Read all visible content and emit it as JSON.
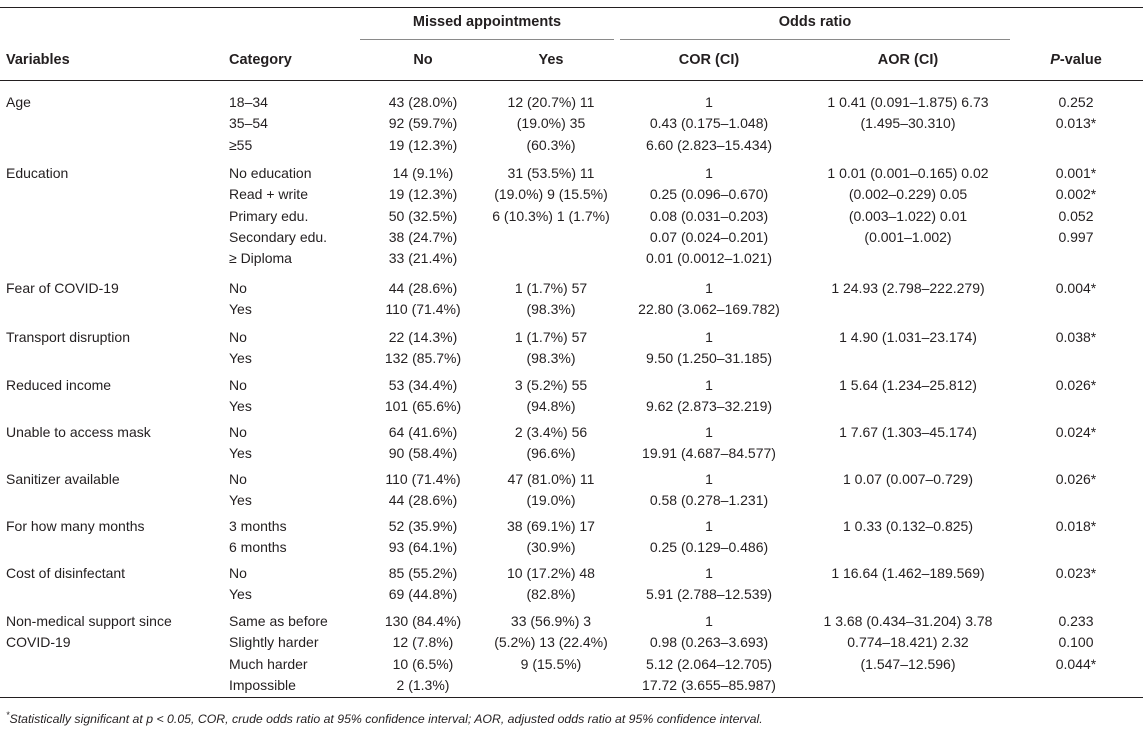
{
  "header": {
    "group_missed": "Missed appointments",
    "group_odds": "Odds ratio",
    "variables": "Variables",
    "category": "Category",
    "no": "No",
    "yes": "Yes",
    "cor": "COR (CI)",
    "aor": "AOR (CI)",
    "p_italic": "P",
    "p_rest": "-value"
  },
  "groups": [
    {
      "variable": [
        "Age"
      ],
      "categories": [
        "18–34",
        "35–54",
        "≥55"
      ],
      "no": [
        "43 (28.0%)",
        "92 (59.7%)",
        "19 (12.3%)"
      ],
      "yes": [
        "12 (20.7%) 11",
        "(19.0%) 35",
        "(60.3%)"
      ],
      "cor": [
        "1",
        "0.43 (0.175–1.048)",
        "6.60 (2.823–15.434)"
      ],
      "aor": [
        "1 0.41 (0.091–1.875) 6.73",
        "(1.495–30.310)"
      ],
      "p": [
        "0.252",
        "0.013*"
      ]
    },
    {
      "variable": [
        "Education"
      ],
      "categories": [
        "No education",
        "Read + write",
        "Primary edu.",
        "Secondary edu.",
        "≥ Diploma"
      ],
      "no": [
        "14 (9.1%)",
        "19 (12.3%)",
        "50 (32.5%)",
        "38 (24.7%)",
        "33 (21.4%)"
      ],
      "yes": [
        "31 (53.5%) 11",
        "(19.0%) 9 (15.5%)",
        "6 (10.3%) 1 (1.7%)"
      ],
      "cor": [
        "1",
        "0.25 (0.096–0.670)",
        "0.08 (0.031–0.203)",
        "0.07 (0.024–0.201)",
        "0.01 (0.0012–1.021)"
      ],
      "aor": [
        "1 0.01 (0.001–0.165) 0.02",
        "(0.002–0.229) 0.05",
        "(0.003–1.022) 0.01",
        "(0.001–1.002)"
      ],
      "p": [
        "0.001*",
        "0.002*",
        "0.052",
        "0.997"
      ]
    },
    {
      "variable": [
        "Fear of COVID-19"
      ],
      "categories": [
        "No",
        "Yes"
      ],
      "no": [
        "44 (28.6%)",
        "110 (71.4%)"
      ],
      "yes": [
        "1 (1.7%) 57",
        "(98.3%)"
      ],
      "cor": [
        "1",
        "22.80 (3.062–169.782)"
      ],
      "aor": [
        "1 24.93 (2.798–222.279)"
      ],
      "p": [
        "0.004*"
      ]
    },
    {
      "variable": [
        "Transport disruption"
      ],
      "categories": [
        "No",
        "Yes"
      ],
      "no": [
        "22 (14.3%)",
        "132 (85.7%)"
      ],
      "yes": [
        "1 (1.7%) 57",
        "(98.3%)"
      ],
      "cor": [
        "1",
        "9.50 (1.250–31.185)"
      ],
      "aor": [
        "1 4.90 (1.031–23.174)"
      ],
      "p": [
        "0.038*"
      ]
    },
    {
      "variable": [
        "Reduced income"
      ],
      "categories": [
        "No",
        "Yes"
      ],
      "no": [
        "53 (34.4%)",
        "101 (65.6%)"
      ],
      "yes": [
        "3 (5.2%) 55",
        "(94.8%)"
      ],
      "cor": [
        "1",
        "9.62 (2.873–32.219)"
      ],
      "aor": [
        "1 5.64 (1.234–25.812)"
      ],
      "p": [
        "0.026*"
      ]
    },
    {
      "variable": [
        "Unable to access mask"
      ],
      "categories": [
        "No",
        "Yes"
      ],
      "no": [
        "64 (41.6%)",
        "90 (58.4%)"
      ],
      "yes": [
        "2 (3.4%) 56",
        "(96.6%)"
      ],
      "cor": [
        "1",
        "19.91 (4.687–84.577)"
      ],
      "aor": [
        "1 7.67 (1.303–45.174)"
      ],
      "p": [
        "0.024*"
      ]
    },
    {
      "variable": [
        "Sanitizer available"
      ],
      "categories": [
        "No",
        "Yes"
      ],
      "no": [
        "110 (71.4%)",
        "44 (28.6%)"
      ],
      "yes": [
        "47 (81.0%) 11",
        "(19.0%)"
      ],
      "cor": [
        "1",
        "0.58 (0.278–1.231)"
      ],
      "aor": [
        "1 0.07 (0.007–0.729)"
      ],
      "p": [
        "0.026*"
      ]
    },
    {
      "variable": [
        "For how many months"
      ],
      "categories": [
        "3 months",
        "6 months"
      ],
      "no": [
        "52 (35.9%)",
        "93 (64.1%)"
      ],
      "yes": [
        "38 (69.1%) 17",
        "(30.9%)"
      ],
      "cor": [
        "1",
        "0.25 (0.129–0.486)"
      ],
      "aor": [
        "1 0.33 (0.132–0.825)"
      ],
      "p": [
        "0.018*"
      ]
    },
    {
      "variable": [
        "Cost of disinfectant"
      ],
      "categories": [
        "No",
        "Yes"
      ],
      "no": [
        "85 (55.2%)",
        "69 (44.8%)"
      ],
      "yes": [
        "10 (17.2%) 48",
        "(82.8%)"
      ],
      "cor": [
        "1",
        "5.91 (2.788–12.539)"
      ],
      "aor": [
        "1 16.64 (1.462–189.569)"
      ],
      "p": [
        "0.023*"
      ]
    },
    {
      "variable": [
        "Non-medical support since",
        "COVID-19"
      ],
      "categories": [
        "Same as before",
        "Slightly harder",
        "Much harder",
        "Impossible"
      ],
      "no": [
        "130 (84.4%)",
        "12 (7.8%)",
        "10 (6.5%)",
        "2 (1.3%)"
      ],
      "yes": [
        "33 (56.9%) 3",
        "(5.2%) 13 (22.4%)",
        "9 (15.5%)"
      ],
      "cor": [
        "1",
        "0.98 (0.263–3.693)",
        "5.12 (2.064–12.705)",
        "17.72 (3.655–85.987)"
      ],
      "aor": [
        "1 3.68 (0.434–31.204) 3.78",
        "0.774–18.421) 2.32",
        "(1.547–12.596)"
      ],
      "p": [
        "0.233",
        "0.100",
        "0.044*"
      ]
    }
  ],
  "footnote": {
    "mark": "*",
    "text": "Statistically significant at p < 0.05, COR, crude odds ratio at 95% confidence interval; AOR, adjusted odds ratio at 95% confidence interval."
  }
}
